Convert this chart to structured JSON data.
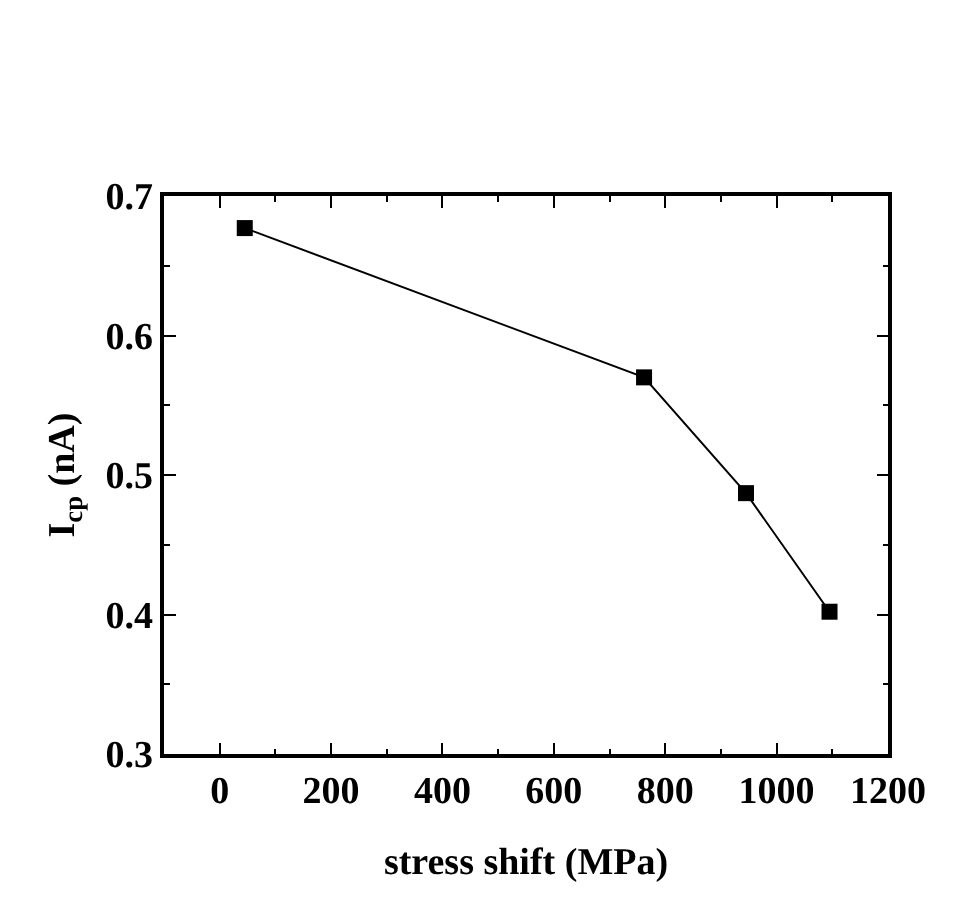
{
  "chart_data": {
    "type": "line",
    "xlabel": "stress shift (MPa)",
    "ylabel": "I$_{cp}$ (nA)",
    "x": [
      45,
      762,
      945,
      1095
    ],
    "series": [
      {
        "color": "#000000",
        "values": [
          0.677,
          0.57,
          0.487,
          0.402
        ]
      }
    ],
    "xlim": [
      -100,
      1200
    ],
    "xticks": [
      0,
      200,
      400,
      600,
      800,
      1000,
      1200
    ],
    "ylim": [
      0.3,
      0.7
    ],
    "yticks": [
      0.3,
      0.4,
      0.5,
      0.6,
      0.7
    ],
    "marker": "square",
    "line_style": "solid"
  }
}
